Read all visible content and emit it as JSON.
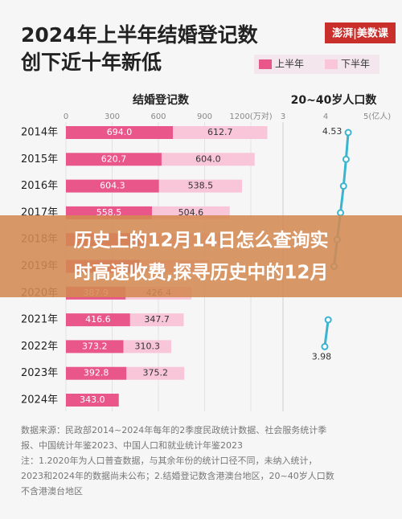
{
  "chart_data": {
    "type": "bar-and-line",
    "title": "2024年上半年结婚登记数",
    "subtitle": "创下近十年新低",
    "logo": "澎湃|美数课",
    "categories": [
      "2014年",
      "2015年",
      "2016年",
      "2017年",
      "2018年",
      "2019年",
      "2020年",
      "2021年",
      "2022年",
      "2023年",
      "2024年"
    ],
    "bar_panel": {
      "title": "结婚登记数",
      "xlim": [
        0,
        1200
      ],
      "xticks": [
        0,
        300,
        600,
        900,
        {
          "value": 1200,
          "label": "1200(万对)"
        }
      ],
      "series": [
        {
          "name": "上半年",
          "color": "#e9578a",
          "values": [
            694.0,
            620.7,
            604.3,
            558.5,
            525.2,
            478.4,
            387.9,
            416.6,
            373.2,
            392.8,
            343.0
          ],
          "value_labels": [
            "694.0",
            "620.7",
            "604.3",
            "558.5",
            null,
            null,
            "387.9",
            "416.6",
            "373.2",
            "392.8",
            "343.0"
          ]
        },
        {
          "name": "下半年",
          "color": "#f8c6d8",
          "values": [
            612.7,
            604.0,
            538.5,
            504.6,
            488.7,
            448.9,
            426.4,
            347.7,
            310.3,
            375.2,
            null
          ],
          "value_labels": [
            "612.7",
            "604.0",
            "538.5",
            "504.6",
            null,
            null,
            "426.4",
            "347.7",
            "310.3",
            "375.2",
            null
          ]
        }
      ]
    },
    "line_panel": {
      "title": "20~40岁人口数",
      "xlim": [
        3,
        5
      ],
      "xticks": [
        3,
        4,
        {
          "value": 5,
          "label": "5(亿人)"
        }
      ],
      "color": "#3ab4cf",
      "values": [
        4.53,
        4.48,
        4.42,
        4.35,
        4.27,
        4.2,
        null,
        4.06,
        3.98,
        null,
        null
      ]
    },
    "banner": [
      "历史上的12月14日怎么查询实",
      "时高速收费,探寻历史中的12月"
    ],
    "notes": [
      "数据来源：民政部2014~2024年每年的2季度民政统计数据、社会服务统计季",
      "报、中国统计年鉴2023、中国人口和就业统计年鉴2023",
      "注：1.2020年为人口普查数据，与其余年份的统计口径不同，未纳入统计，",
      "2023和2024年的数据尚未公布；2.结婚登记数含港澳台地区，20~40岁人口数",
      "不含港澳台地区"
    ]
  }
}
